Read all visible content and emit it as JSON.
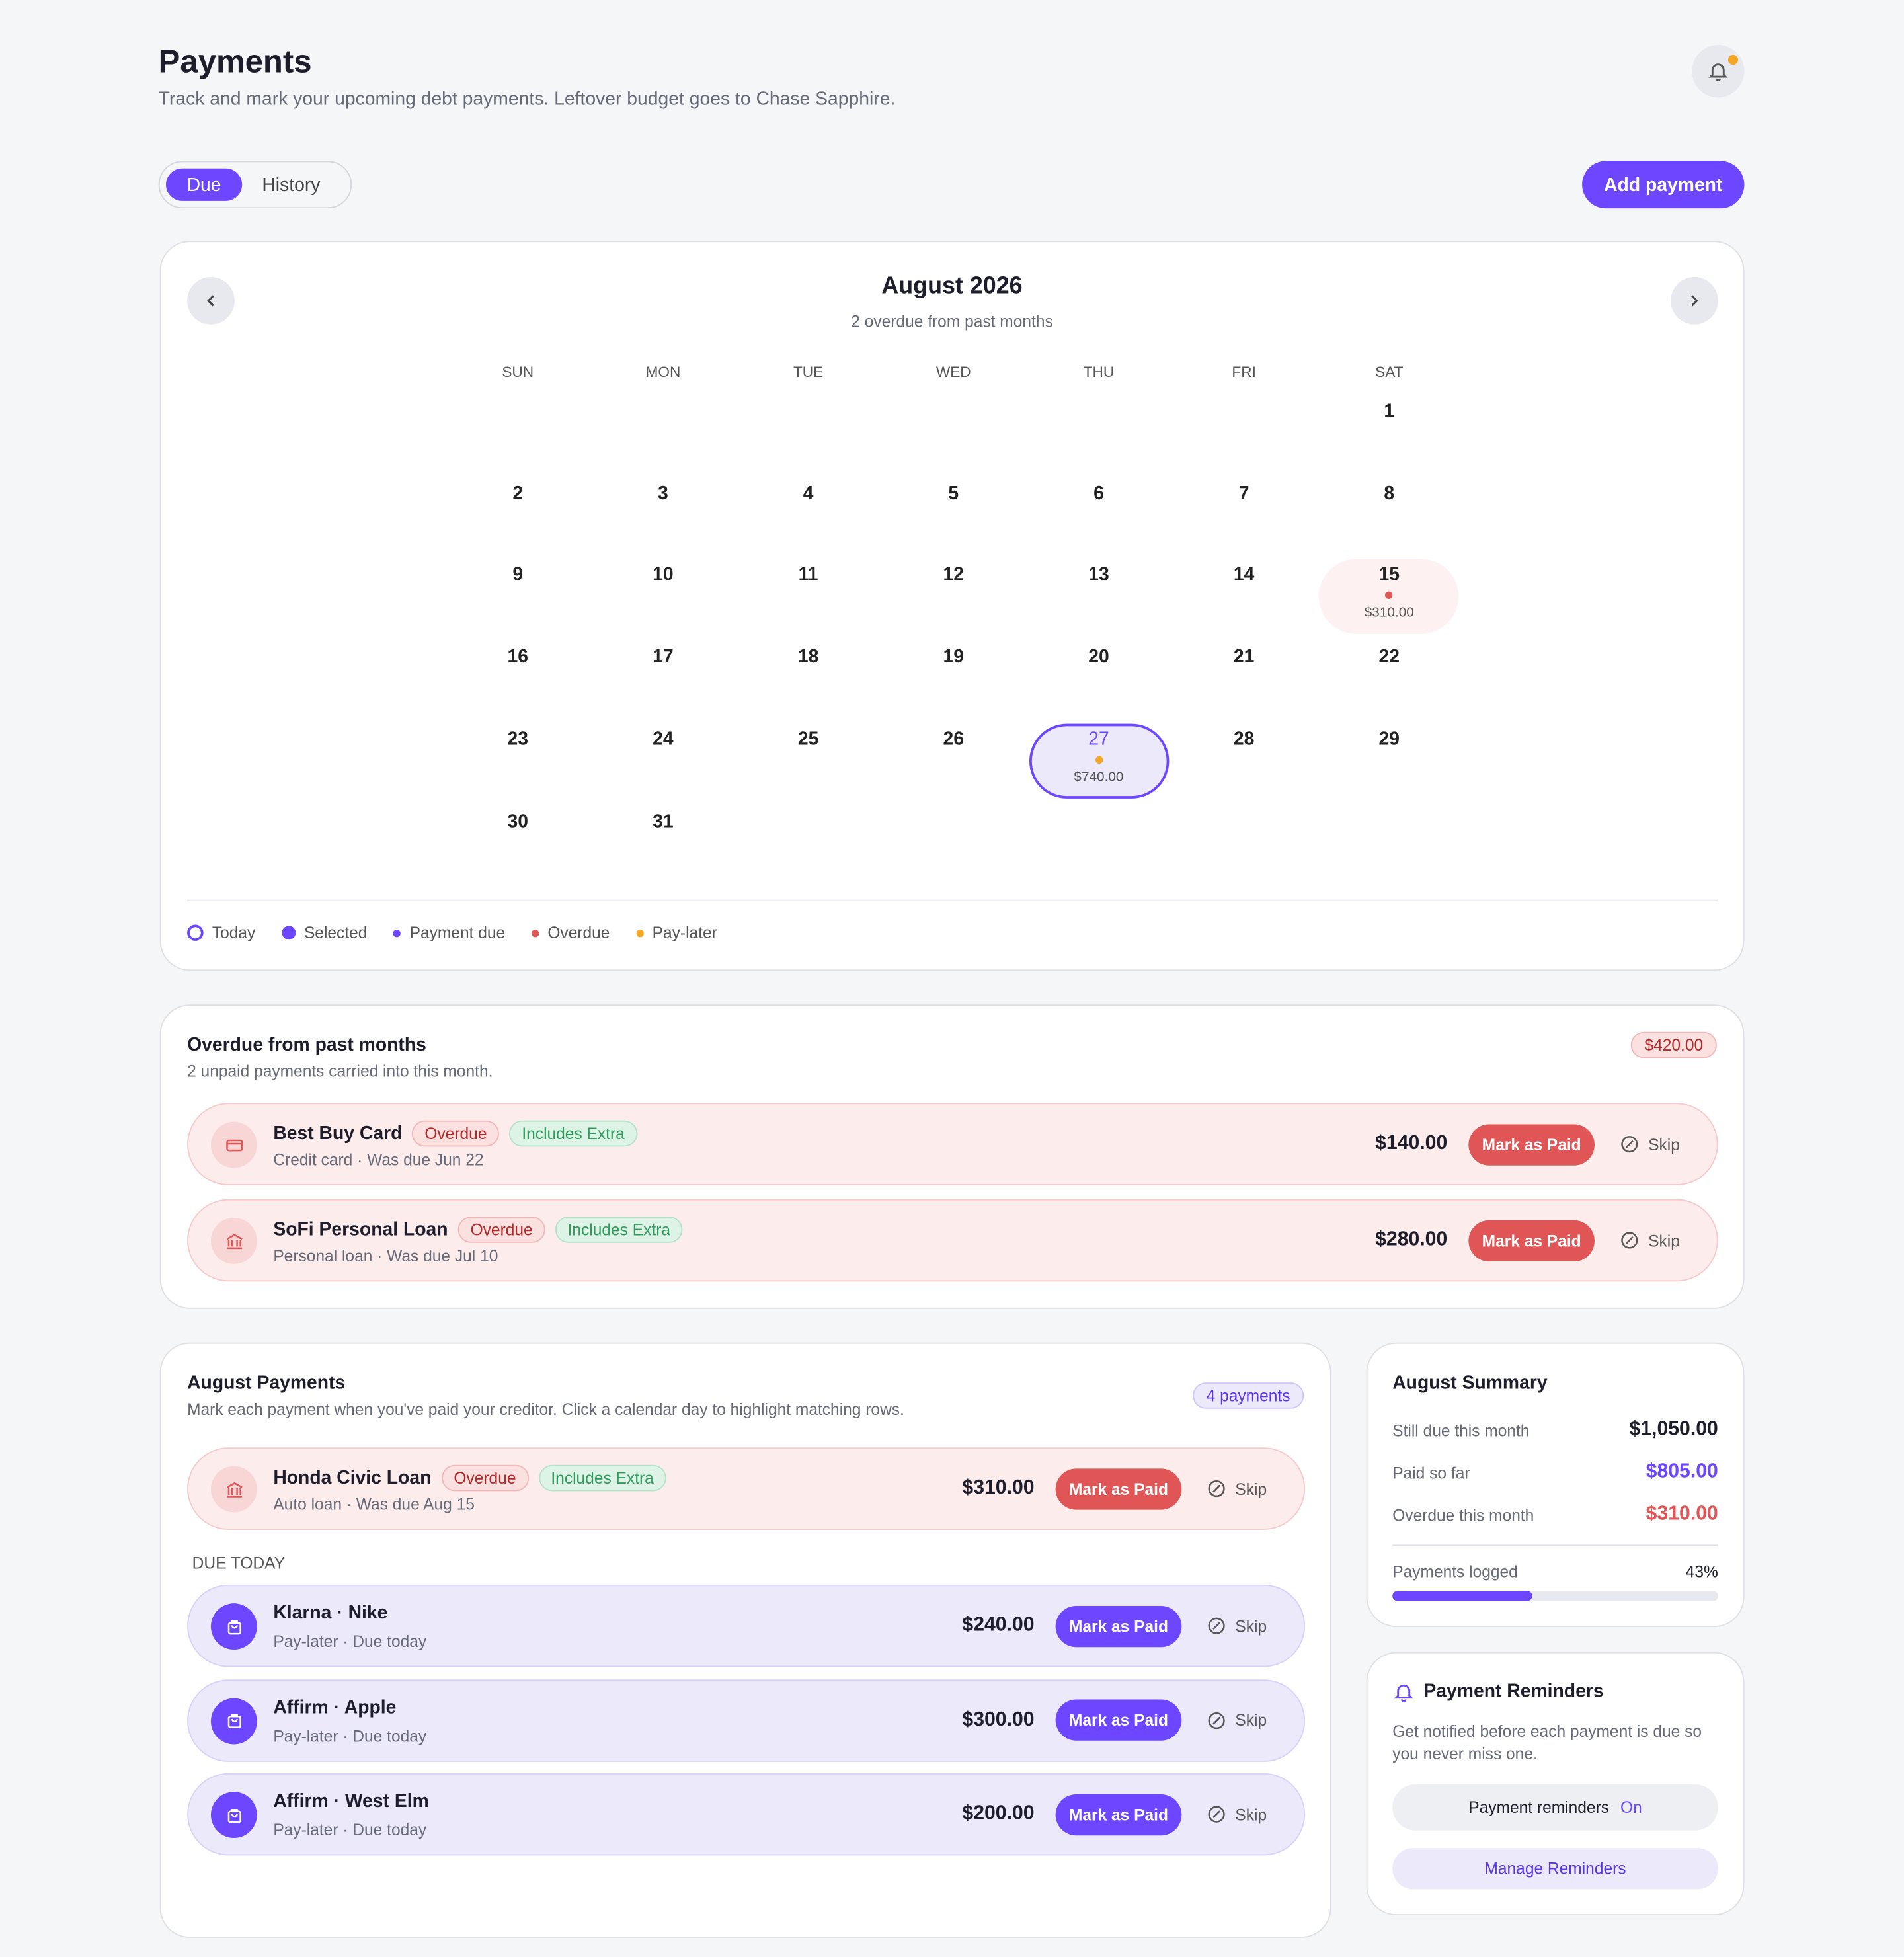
{
  "header": {
    "title": "Payments",
    "subtitle": "Track and mark your upcoming debt payments. Leftover budget goes to Chase Sapphire.",
    "tabs": [
      "Due",
      "History"
    ],
    "add_button": "Add payment"
  },
  "calendar": {
    "month": "August 2026",
    "note": "2 overdue from past months",
    "weekdays": [
      "SUN",
      "MON",
      "TUE",
      "WED",
      "THU",
      "FRI",
      "SAT"
    ],
    "weeks": [
      [
        null,
        null,
        null,
        null,
        null,
        null,
        1
      ],
      [
        2,
        3,
        4,
        5,
        6,
        7,
        8
      ],
      [
        9,
        10,
        11,
        12,
        13,
        14,
        {
          "day": 15,
          "amount": "$310.00",
          "kind": "overdue"
        }
      ],
      [
        16,
        17,
        18,
        19,
        20,
        21,
        22
      ],
      [
        23,
        24,
        25,
        26,
        {
          "day": 27,
          "amount": "$740.00",
          "kind": "pay-later",
          "selected": true
        },
        28,
        29
      ],
      [
        30,
        31
      ]
    ],
    "legend": [
      {
        "label": "Today",
        "kind": "today"
      },
      {
        "label": "Selected",
        "kind": "selected"
      },
      {
        "label": "Payment due",
        "kind": "due"
      },
      {
        "label": "Overdue",
        "kind": "overdue"
      },
      {
        "label": "Pay-later",
        "kind": "pay-later"
      }
    ]
  },
  "overdue": {
    "title": "Overdue from past months",
    "subtitle": "2 unpaid payments carried into this month.",
    "total": "$420.00",
    "items": [
      {
        "name": "Best Buy Card",
        "tags": [
          {
            "text": "Overdue",
            "kind": "overdue"
          },
          {
            "text": "Includes Extra",
            "kind": "extra"
          }
        ],
        "detail": "Credit card · Was due Jun 22",
        "amount": "$140.00",
        "action": "Mark as Paid",
        "skip": "Skip",
        "kind": "overdue",
        "icon": "card"
      },
      {
        "name": "SoFi Personal Loan",
        "tags": [
          {
            "text": "Overdue",
            "kind": "overdue"
          },
          {
            "text": "Includes Extra",
            "kind": "extra"
          }
        ],
        "detail": "Personal loan · Was due Jul 10",
        "amount": "$280.00",
        "action": "Mark as Paid",
        "skip": "Skip",
        "kind": "overdue",
        "icon": "bank"
      }
    ]
  },
  "august": {
    "title": "August Payments",
    "subtitle": "Mark each payment when you've paid your creditor. Click a calendar day to highlight matching rows.",
    "count": "4 payments",
    "items": [
      {
        "name": "Honda Civic Loan",
        "tags": [
          {
            "text": "Overdue",
            "kind": "overdue"
          },
          {
            "text": "Includes Extra",
            "kind": "extra"
          }
        ],
        "detail": "Auto loan · Was due Aug 15",
        "amount": "$310.00",
        "action": "Mark as Paid",
        "skip": "Skip",
        "kind": "overdue",
        "icon": "bank"
      }
    ],
    "section": "DUE TODAY",
    "today_items": [
      {
        "name": "Klarna · Nike",
        "detail": "Pay-later · Due today",
        "amount": "$240.00",
        "action": "Mark as Paid",
        "skip": "Skip",
        "kind": "pay-later",
        "icon": "bag"
      },
      {
        "name": "Affirm · Apple",
        "detail": "Pay-later · Due today",
        "amount": "$300.00",
        "action": "Mark as Paid",
        "skip": "Skip",
        "kind": "pay-later",
        "icon": "bag"
      },
      {
        "name": "Affirm · West Elm",
        "detail": "Pay-later · Due today",
        "amount": "$200.00",
        "action": "Mark as Paid",
        "skip": "Skip",
        "kind": "pay-later",
        "icon": "bag"
      }
    ]
  },
  "summary": {
    "title": "August Summary",
    "rows": [
      {
        "label": "Still due this month",
        "value": "$1,050.00",
        "color": "dark"
      },
      {
        "label": "Paid so far",
        "value": "$805.00",
        "color": "accent"
      },
      {
        "label": "Overdue this month",
        "value": "$310.00",
        "color": "red"
      }
    ],
    "progress_label": "Payments logged",
    "progress": "43%"
  },
  "reminders": {
    "title": "Payment Reminders",
    "text": "Get notified before each payment is due so you never miss one.",
    "toggle_label": "Payment reminders",
    "toggle_state": "On",
    "button": "Manage Reminders"
  }
}
